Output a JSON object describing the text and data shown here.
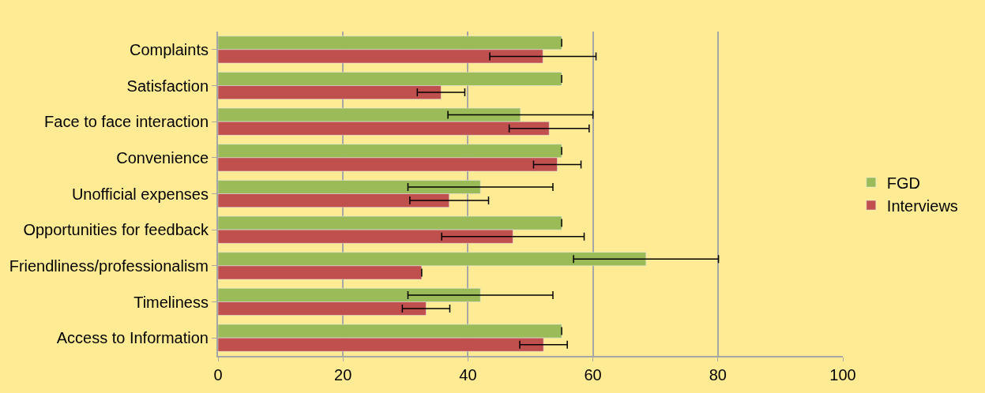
{
  "chart_data": {
    "type": "bar",
    "orientation": "horizontal",
    "categories": [
      "Complaints",
      "Satisfaction",
      "Face to face interaction",
      "Convenience",
      "Unofficial expenses",
      "Opportunities for feedback",
      "Friendliness/professionalism",
      "Timeliness",
      "Access to Information"
    ],
    "series": [
      {
        "name": "FGD",
        "color": "#9bbb59",
        "values": [
          55,
          55,
          48.4,
          55,
          42,
          55,
          68.5,
          42,
          55
        ],
        "errors": [
          null,
          null,
          11.6,
          null,
          11.6,
          null,
          11.6,
          11.6,
          null
        ]
      },
      {
        "name": "Interviews",
        "color": "#c0504d",
        "values": [
          52,
          35.7,
          53,
          54.3,
          37,
          47.2,
          32.6,
          33.3,
          52.1
        ],
        "errors": [
          8.5,
          3.8,
          6.4,
          3.8,
          6.3,
          11.4,
          null,
          3.8,
          3.8
        ]
      }
    ],
    "xlim": [
      0,
      100
    ],
    "xticks": [
      0,
      20,
      40,
      60,
      80,
      100
    ],
    "grid": "x",
    "legend": "right"
  }
}
